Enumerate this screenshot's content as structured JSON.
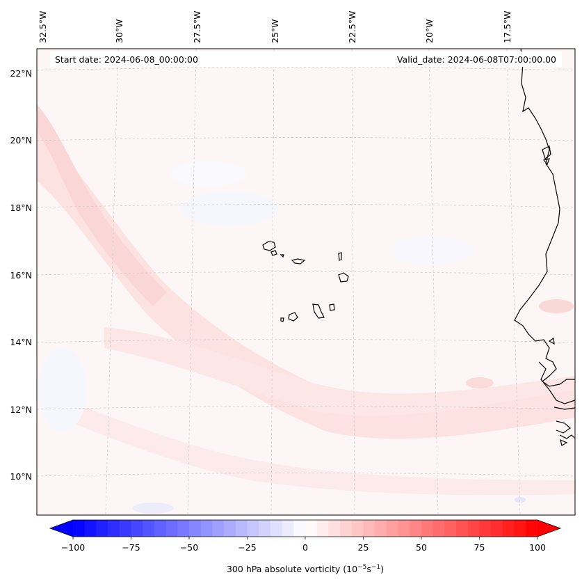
{
  "map": {
    "start_date": "Start date: 2024-06-08_00:00:00",
    "valid_date": "Valid_date: 2024-06-08T07:00:00.00",
    "lon_labels": [
      "32.5°W",
      "30°W",
      "27.5°W",
      "25°W",
      "22.5°W",
      "20°W",
      "17.5°W"
    ],
    "lat_labels": [
      "22°N",
      "20°N",
      "18°N",
      "16°N",
      "14°N",
      "12°N",
      "10°N"
    ],
    "field": "300 hPa absolute vorticity",
    "scale": {
      "min": -100,
      "max": 100,
      "ticks": [
        "−100",
        "−75",
        "−50",
        "−25",
        "0",
        "25",
        "50",
        "75",
        "100"
      ]
    },
    "colormap": {
      "negative": "#0000ff",
      "zero": "#ffffff",
      "positive": "#ff0000"
    },
    "gridlines": true,
    "places": [
      "Cabo Verde islands",
      "West African coast"
    ]
  },
  "colorbar": {
    "label_prefix": "300 hPa absolute vorticity (10",
    "exp1": "−5",
    "label_mid": "s",
    "exp2": "−1",
    "label_suffix": ")"
  }
}
